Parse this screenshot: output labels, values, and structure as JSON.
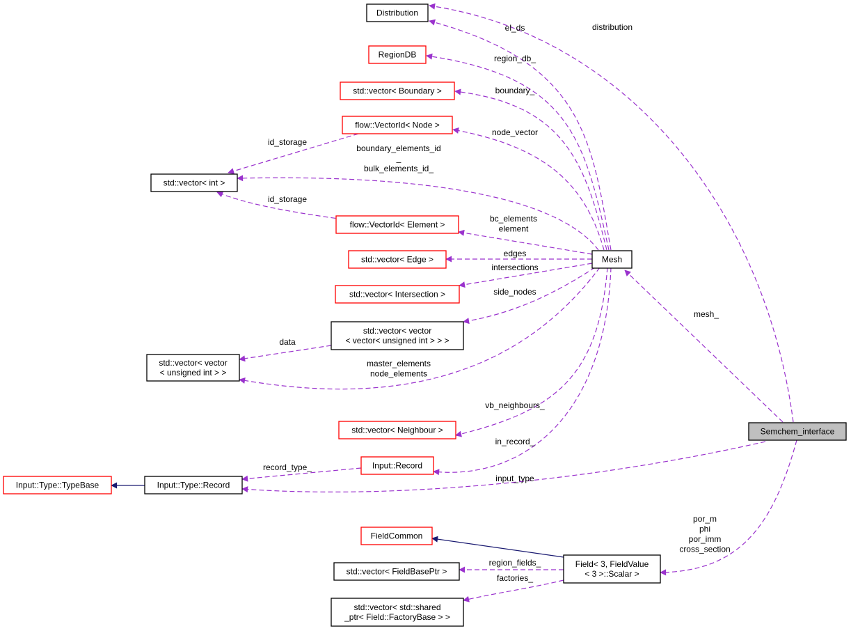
{
  "colors": {
    "member_edge": "#9a32cd",
    "inherit_edge": "#191970",
    "documented_border": "#000000",
    "undocumented_border": "#ff0000",
    "focus_fill": "#bfbfbf"
  },
  "nodes": [
    {
      "id": "distribution",
      "lines": [
        "Distribution"
      ],
      "border": "#000000"
    },
    {
      "id": "regiondb",
      "lines": [
        "RegionDB"
      ],
      "border": "#ff0000"
    },
    {
      "id": "vec_boundary",
      "lines": [
        "std::vector< Boundary >"
      ],
      "border": "#ff0000"
    },
    {
      "id": "vid_node",
      "lines": [
        "flow::VectorId< Node >"
      ],
      "border": "#ff0000"
    },
    {
      "id": "vec_int",
      "lines": [
        "std::vector< int >"
      ],
      "border": "#000000"
    },
    {
      "id": "vid_element",
      "lines": [
        "flow::VectorId< Element >"
      ],
      "border": "#ff0000"
    },
    {
      "id": "vec_edge",
      "lines": [
        "std::vector< Edge >"
      ],
      "border": "#ff0000"
    },
    {
      "id": "vec_intersection",
      "lines": [
        "std::vector< Intersection >"
      ],
      "border": "#ff0000"
    },
    {
      "id": "vec_vec_vec",
      "lines": [
        "std::vector< vector",
        "< vector< unsigned int > > >"
      ],
      "border": "#000000"
    },
    {
      "id": "vec_vec_uint",
      "lines": [
        "std::vector< vector",
        "< unsigned int > >"
      ],
      "border": "#000000"
    },
    {
      "id": "vec_neighbour",
      "lines": [
        "std::vector< Neighbour >"
      ],
      "border": "#ff0000"
    },
    {
      "id": "input_record",
      "lines": [
        "Input::Record"
      ],
      "border": "#ff0000"
    },
    {
      "id": "typebase",
      "lines": [
        "Input::Type::TypeBase"
      ],
      "border": "#ff0000"
    },
    {
      "id": "type_record",
      "lines": [
        "Input::Type::Record"
      ],
      "border": "#000000"
    },
    {
      "id": "mesh",
      "lines": [
        "Mesh"
      ],
      "border": "#000000"
    },
    {
      "id": "semchem",
      "lines": [
        "Semchem_interface"
      ],
      "border": "#000000",
      "focus": true
    },
    {
      "id": "fieldcommon",
      "lines": [
        "FieldCommon"
      ],
      "border": "#ff0000"
    },
    {
      "id": "vec_fieldbase",
      "lines": [
        "std::vector< FieldBasePtr >"
      ],
      "border": "#000000"
    },
    {
      "id": "field",
      "lines": [
        "Field< 3, FieldValue",
        "< 3 >::Scalar >"
      ],
      "border": "#000000"
    },
    {
      "id": "vec_shared",
      "lines": [
        "std::vector< std::shared",
        "_ptr< Field::FactoryBase > >"
      ],
      "border": "#000000"
    }
  ],
  "edges": [
    {
      "from": "semchem",
      "to": "distribution",
      "kind": "member",
      "labels": [
        "distribution"
      ]
    },
    {
      "from": "mesh",
      "to": "distribution",
      "kind": "member",
      "labels": [
        "el_ds"
      ]
    },
    {
      "from": "mesh",
      "to": "regiondb",
      "kind": "member",
      "labels": [
        "region_db_"
      ]
    },
    {
      "from": "mesh",
      "to": "vec_boundary",
      "kind": "member",
      "labels": [
        "boundary_"
      ]
    },
    {
      "from": "mesh",
      "to": "vid_node",
      "kind": "member",
      "labels": [
        "node_vector"
      ]
    },
    {
      "from": "vid_node",
      "to": "vec_int",
      "kind": "member",
      "labels": [
        "id_storage"
      ]
    },
    {
      "from": "mesh",
      "to": "vec_int",
      "kind": "member",
      "labels": [
        "boundary_elements_id",
        "_",
        "bulk_elements_id_"
      ]
    },
    {
      "from": "vid_element",
      "to": "vec_int",
      "kind": "member",
      "labels": [
        "id_storage"
      ]
    },
    {
      "from": "mesh",
      "to": "vid_element",
      "kind": "member",
      "labels": [
        "bc_elements",
        "element"
      ]
    },
    {
      "from": "mesh",
      "to": "vec_edge",
      "kind": "member",
      "labels": [
        "edges"
      ]
    },
    {
      "from": "mesh",
      "to": "vec_intersection",
      "kind": "member",
      "labels": [
        "intersections"
      ]
    },
    {
      "from": "mesh",
      "to": "vec_vec_vec",
      "kind": "member",
      "labels": [
        "side_nodes"
      ]
    },
    {
      "from": "vec_vec_vec",
      "to": "vec_vec_uint",
      "kind": "member",
      "labels": [
        "data"
      ]
    },
    {
      "from": "mesh",
      "to": "vec_vec_uint",
      "kind": "member",
      "labels": [
        "master_elements",
        "node_elements"
      ]
    },
    {
      "from": "mesh",
      "to": "vec_neighbour",
      "kind": "member",
      "labels": [
        "vb_neighbours_"
      ]
    },
    {
      "from": "mesh",
      "to": "input_record",
      "kind": "member",
      "labels": [
        "in_record_"
      ]
    },
    {
      "from": "input_record",
      "to": "type_record",
      "kind": "member",
      "labels": [
        "record_type_"
      ]
    },
    {
      "from": "semchem",
      "to": "type_record",
      "kind": "member",
      "labels": [
        "input_type"
      ]
    },
    {
      "from": "semchem",
      "to": "mesh",
      "kind": "member",
      "labels": [
        "mesh_"
      ]
    },
    {
      "from": "type_record",
      "to": "typebase",
      "kind": "inherit",
      "labels": []
    },
    {
      "from": "field",
      "to": "fieldcommon",
      "kind": "inherit",
      "labels": []
    },
    {
      "from": "field",
      "to": "vec_fieldbase",
      "kind": "member",
      "labels": [
        "region_fields_"
      ]
    },
    {
      "from": "field",
      "to": "vec_shared",
      "kind": "member",
      "labels": [
        "factories_"
      ]
    },
    {
      "from": "semchem",
      "to": "field",
      "kind": "member",
      "labels": [
        "por_m",
        "phi",
        "por_imm",
        "cross_section"
      ]
    }
  ]
}
